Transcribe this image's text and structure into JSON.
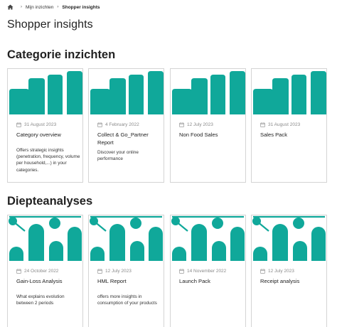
{
  "breadcrumb": {
    "items": [
      "Mijn inzichten",
      "Shopper insights"
    ]
  },
  "page": {
    "title": "Shopper insights"
  },
  "colors": {
    "accent": "#10a89a"
  },
  "sections": [
    {
      "title": "Categorie inzichten",
      "cards": [
        {
          "date": "31 August 2023",
          "title": "Category overview",
          "description": "Offers strategic insights (penetration, frequency, volume per household,...) in your categories."
        },
        {
          "date": "4 February 2022",
          "title": "Collect & Go_Partner Report",
          "description": "Discover your online performance"
        },
        {
          "date": "12 July 2023",
          "title": "Non Food Sales",
          "description": ""
        },
        {
          "date": "31 August 2023",
          "title": "Sales Pack",
          "description": ""
        }
      ]
    },
    {
      "title": "Diepteanalyses",
      "cards": [
        {
          "date": "24 October 2022",
          "title": "Gain-Loss Analysis",
          "description": "What explains evolution between 2 periods"
        },
        {
          "date": "12 July 2023",
          "title": "HML Report",
          "description": "offers more insights in consumption of your products"
        },
        {
          "date": "14 November 2022",
          "title": "Launch Pack",
          "description": ""
        },
        {
          "date": "12 July 2023",
          "title": "Receipt analysis",
          "description": ""
        }
      ]
    }
  ]
}
